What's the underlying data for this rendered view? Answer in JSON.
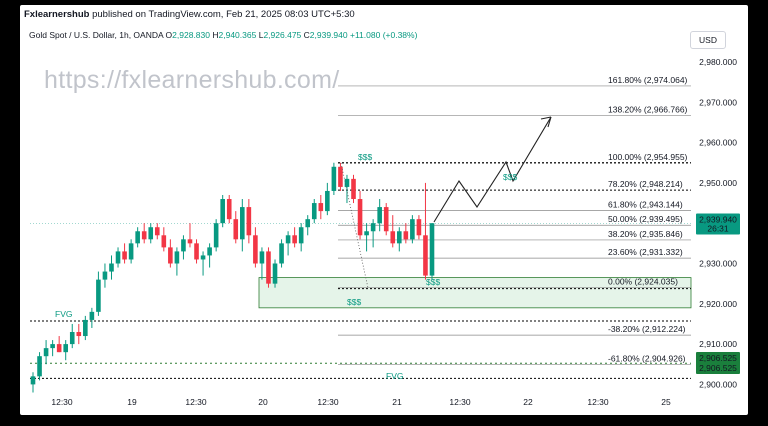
{
  "header": {
    "publisher": "Fxlearnershub",
    "published_text": "published on TradingView.com, Feb 21, 2025 08:03 UTC+5:30"
  },
  "symbol": {
    "name": "Gold Spot / U.S. Dollar, 1h, OANDA",
    "open_label": "O",
    "open": "2,928.830",
    "high_label": "H",
    "high": "2,940.365",
    "low_label": "L",
    "low": "2,926.475",
    "close_label": "C",
    "close": "2,939.940",
    "change": "+11.080 (+0.38%)"
  },
  "currency_button": "USD",
  "watermark": "https://fxlearnershub.com/",
  "colors": {
    "up": "#089981",
    "down": "#f23645",
    "zone": "#e5f4e9",
    "accent": "#1a7f3c"
  },
  "chart_data": {
    "type": "candlestick",
    "y_axis": {
      "min": 2900,
      "max": 2980,
      "ticks": [
        "2,980.000",
        "2,970.000",
        "2,960.000",
        "2,950.000",
        "2,940.000",
        "2,930.000",
        "2,920.000",
        "2,910.000",
        "2,900.000"
      ]
    },
    "x_ticks": [
      "12:30",
      "19",
      "12:30",
      "20",
      "12:30",
      "21",
      "12:30",
      "22",
      "12:30",
      "25"
    ],
    "last_price": {
      "value": 2939.94,
      "label": "2,939.940",
      "countdown": "26:31"
    },
    "ref_price": {
      "value": 2906.525,
      "label1": "2,906.525",
      "label2": "2,906.525"
    },
    "fib_levels": [
      {
        "value": 2974.064,
        "label": "161.80% (2,974.064)"
      },
      {
        "value": 2966.766,
        "label": "138.20% (2,966.766)"
      },
      {
        "value": 2954.955,
        "label": "100.00% (2,954.955)"
      },
      {
        "value": 2948.214,
        "label": "78.20% (2,948.214)"
      },
      {
        "value": 2943.144,
        "label": "61.80% (2,943.144)"
      },
      {
        "value": 2939.495,
        "label": "50.00% (2,939.495)"
      },
      {
        "value": 2935.846,
        "label": "38.20% (2,935.846)"
      },
      {
        "value": 2931.332,
        "label": "23.60% (2,931.332)"
      },
      {
        "value": 2924.035,
        "label": "0.00% (2,924.035)"
      },
      {
        "value": 2912.224,
        "label": "-38.20% (2,912.224)"
      },
      {
        "value": 2904.926,
        "label": "-61.80% (2,904.926)"
      }
    ],
    "annotations": {
      "liquidity_label": "$$$",
      "fvg_label": "FVG",
      "fvg_zone": {
        "low": 2919,
        "high": 2926.5
      },
      "liquidity_levels": [
        2955,
        2924,
        2915,
        2905,
        2901
      ]
    },
    "candles": [
      [
        2900,
        2903,
        2898,
        2902
      ],
      [
        2902,
        2908,
        2901,
        2907
      ],
      [
        2907,
        2911,
        2905,
        2909
      ],
      [
        2909,
        2911,
        2907,
        2910
      ],
      [
        2910,
        2912,
        2908,
        2908
      ],
      [
        2908,
        2911,
        2906,
        2910
      ],
      [
        2910,
        2915,
        2909,
        2913
      ],
      [
        2913,
        2915,
        2910,
        2912
      ],
      [
        2912,
        2917,
        2911,
        2916
      ],
      [
        2916,
        2919,
        2914,
        2918
      ],
      [
        2918,
        2928,
        2917,
        2926
      ],
      [
        2926,
        2930,
        2924,
        2928
      ],
      [
        2928,
        2932,
        2926,
        2930
      ],
      [
        2930,
        2934,
        2929,
        2933
      ],
      [
        2933,
        2935,
        2930,
        2931
      ],
      [
        2931,
        2936,
        2930,
        2935
      ],
      [
        2935,
        2939,
        2934,
        2938
      ],
      [
        2938,
        2940,
        2935,
        2936
      ],
      [
        2936,
        2940,
        2935,
        2939
      ],
      [
        2939,
        2940,
        2936,
        2937
      ],
      [
        2937,
        2939,
        2933,
        2934
      ],
      [
        2934,
        2936,
        2929,
        2930
      ],
      [
        2930,
        2934,
        2927,
        2933
      ],
      [
        2933,
        2937,
        2931,
        2936
      ],
      [
        2936,
        2940,
        2934,
        2935
      ],
      [
        2935,
        2936,
        2930,
        2931
      ],
      [
        2931,
        2933,
        2927,
        2932
      ],
      [
        2932,
        2935,
        2929,
        2934
      ],
      [
        2934,
        2941,
        2933,
        2940
      ],
      [
        2940,
        2947,
        2939,
        2946
      ],
      [
        2946,
        2947,
        2940,
        2941
      ],
      [
        2941,
        2943,
        2935,
        2936
      ],
      [
        2936,
        2946,
        2933,
        2944
      ],
      [
        2944,
        2946,
        2935,
        2937
      ],
      [
        2937,
        2939,
        2929,
        2930
      ],
      [
        2930,
        2934,
        2926,
        2933
      ],
      [
        2933,
        2934,
        2924,
        2925
      ],
      [
        2925,
        2931,
        2924,
        2930
      ],
      [
        2930,
        2936,
        2929,
        2935
      ],
      [
        2935,
        2938,
        2932,
        2937
      ],
      [
        2937,
        2939,
        2934,
        2935
      ],
      [
        2935,
        2940,
        2933,
        2939
      ],
      [
        2939,
        2942,
        2937,
        2941
      ],
      [
        2941,
        2946,
        2940,
        2945
      ],
      [
        2945,
        2947,
        2941,
        2943
      ],
      [
        2943,
        2950,
        2942,
        2948
      ],
      [
        2948,
        2955,
        2947,
        2954
      ],
      [
        2954,
        2955,
        2948,
        2949
      ],
      [
        2949,
        2952,
        2945,
        2951
      ],
      [
        2951,
        2952,
        2945,
        2946
      ],
      [
        2946,
        2948,
        2936,
        2937
      ],
      [
        2937,
        2940,
        2933,
        2938
      ],
      [
        2938,
        2941,
        2934,
        2940
      ],
      [
        2940,
        2946,
        2938,
        2944
      ],
      [
        2944,
        2945,
        2937,
        2938
      ],
      [
        2938,
        2942,
        2934,
        2935
      ],
      [
        2935,
        2939,
        2933,
        2938
      ],
      [
        2938,
        2940,
        2935,
        2936
      ],
      [
        2936,
        2942,
        2935,
        2941
      ],
      [
        2941,
        2942,
        2936,
        2937
      ],
      [
        2937,
        2950,
        2926,
        2927
      ],
      [
        2927,
        2940,
        2926,
        2940
      ]
    ]
  }
}
